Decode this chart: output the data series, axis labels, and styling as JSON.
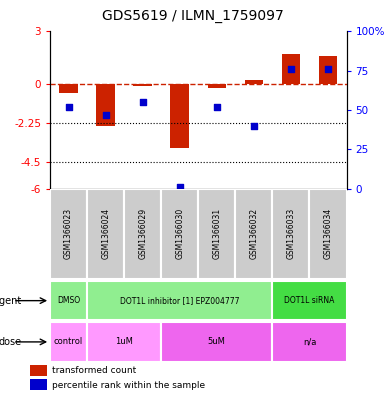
{
  "title": "GDS5619 / ILMN_1759097",
  "samples": [
    "GSM1366023",
    "GSM1366024",
    "GSM1366029",
    "GSM1366030",
    "GSM1366031",
    "GSM1366032",
    "GSM1366033",
    "GSM1366034"
  ],
  "bar_values": [
    -0.5,
    -2.4,
    -0.15,
    -3.7,
    -0.25,
    0.2,
    1.7,
    1.6
  ],
  "percentile_values": [
    52,
    47,
    55,
    1,
    52,
    40,
    76,
    76
  ],
  "ylim_left": [
    -6,
    3
  ],
  "ylim_right": [
    0,
    100
  ],
  "yticks_left": [
    -6,
    -4.5,
    -2.25,
    0,
    3
  ],
  "ytick_labels_left": [
    "-6",
    "-4.5",
    "-2.25",
    "0",
    "3"
  ],
  "yticks_right": [
    0,
    25,
    50,
    75,
    100
  ],
  "ytick_labels_right": [
    "0",
    "25",
    "50",
    "75",
    "100%"
  ],
  "dotted_lines": [
    -2.25,
    -4.5
  ],
  "bar_color": "#CC2200",
  "dot_color": "#0000CC",
  "gray_color": "#CCCCCC",
  "agent_groups": [
    {
      "label": "DMSO",
      "start": 0,
      "end": 1,
      "color": "#90EE90"
    },
    {
      "label": "DOT1L inhibitor [1] EPZ004777",
      "start": 1,
      "end": 6,
      "color": "#90EE90"
    },
    {
      "label": "DOT1L siRNA",
      "start": 6,
      "end": 8,
      "color": "#44DD44"
    }
  ],
  "dose_groups": [
    {
      "label": "control",
      "start": 0,
      "end": 1,
      "color": "#FF99FF"
    },
    {
      "label": "1uM",
      "start": 1,
      "end": 3,
      "color": "#FF99FF"
    },
    {
      "label": "5uM",
      "start": 3,
      "end": 6,
      "color": "#EE66EE"
    },
    {
      "label": "n/a",
      "start": 6,
      "end": 8,
      "color": "#EE66EE"
    }
  ]
}
